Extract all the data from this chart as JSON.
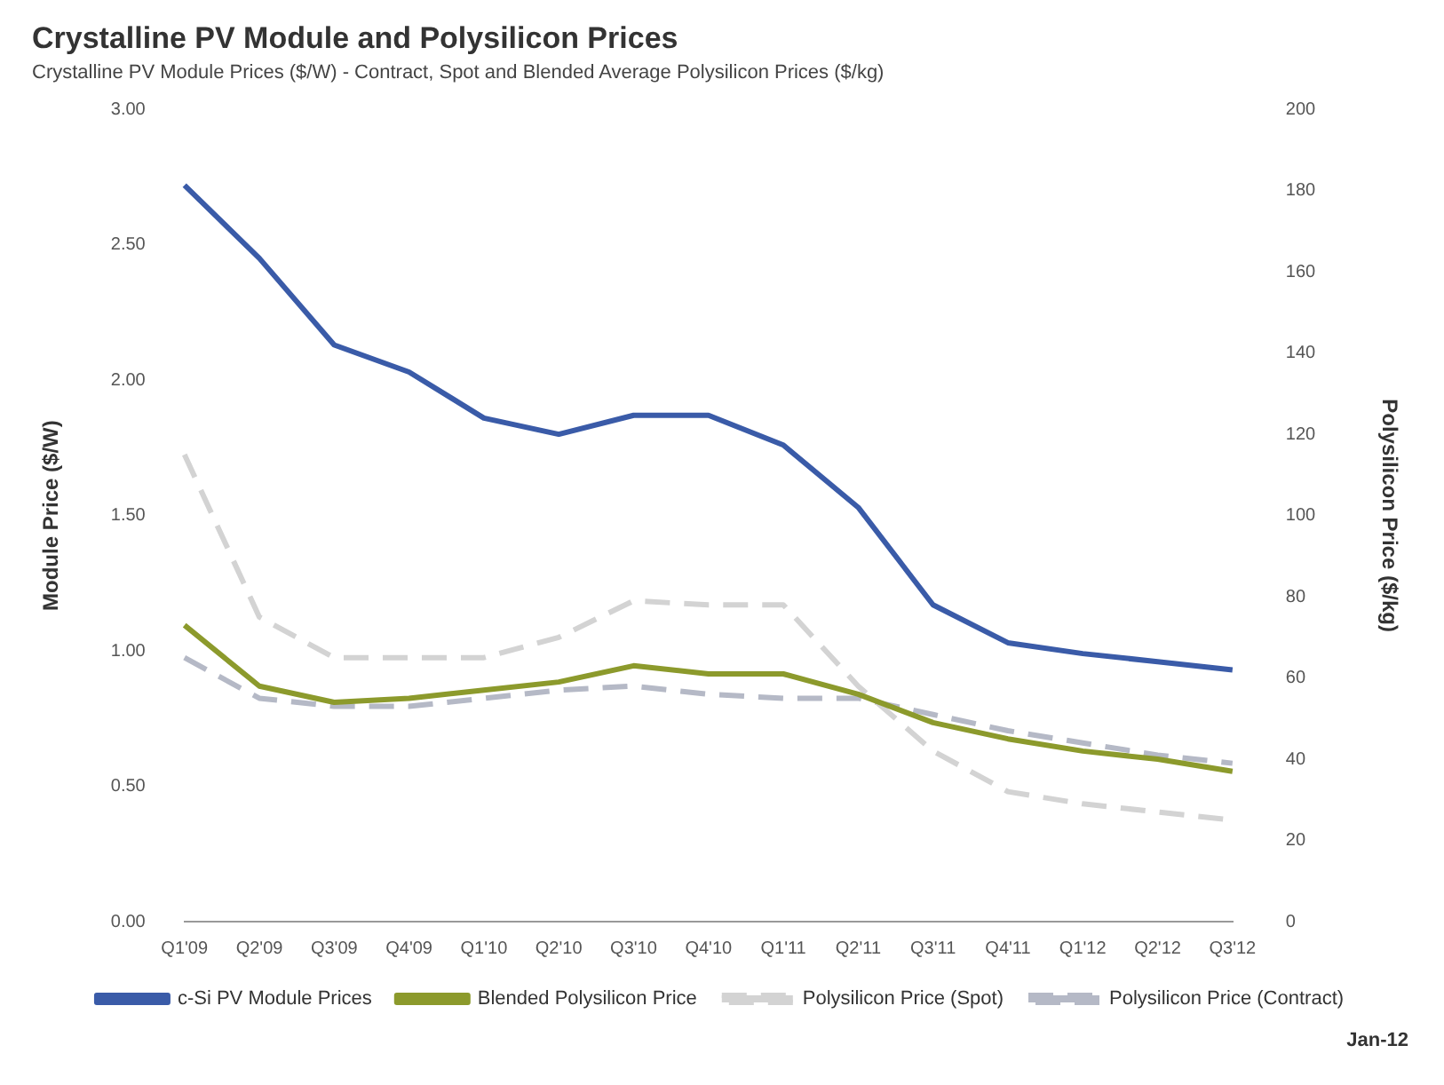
{
  "chart_data": {
    "type": "line",
    "title": "Crystalline PV Module and Polysilicon Prices",
    "subtitle": "Crystalline PV Module Prices ($/W) - Contract, Spot and Blended Average Polysilicon Prices ($/kg)",
    "ylabel": "Module Price ($/W)",
    "y2label": "Polysilicon Price ($/kg)",
    "categories": [
      "Q1'09",
      "Q2'09",
      "Q3'09",
      "Q4'09",
      "Q1'10",
      "Q2'10",
      "Q3'10",
      "Q4'10",
      "Q1'11",
      "Q2'11",
      "Q3'11",
      "Q4'11",
      "Q1'12",
      "Q2'12",
      "Q3'12"
    ],
    "series": [
      {
        "name": "c-Si PV Module Prices",
        "color": "#3a5ba8",
        "line_style": "solid",
        "values": [
          2.72,
          2.45,
          2.13,
          2.03,
          1.86,
          1.8,
          1.87,
          1.87,
          1.76,
          1.53,
          1.17,
          1.03,
          0.99,
          0.96,
          0.93
        ]
      },
      {
        "name": "Blended Polysilicon Price",
        "color": "#8c9a2c",
        "axis": "y2",
        "line_style": "solid",
        "values": [
          73,
          58,
          54,
          55,
          57,
          59,
          63,
          61,
          61,
          56,
          49,
          45,
          42,
          40,
          37
        ]
      },
      {
        "name": "Polysilicon Price (Spot)",
        "color": "#d3d3d3",
        "axis": "y2",
        "line_style": "dashed",
        "values": [
          115,
          75,
          65,
          65,
          65,
          70,
          79,
          78,
          78,
          58,
          42,
          32,
          29,
          27,
          25
        ]
      },
      {
        "name": "Polysilicon Price (Contract)",
        "color": "#b5b9c6",
        "axis": "y2",
        "line_style": "dashed",
        "values": [
          65,
          55,
          53,
          53,
          55,
          57,
          58,
          56,
          55,
          55,
          51,
          47,
          44,
          41,
          39
        ]
      }
    ],
    "ylim": [
      0,
      3
    ],
    "yticks": [
      {
        "value": 0,
        "label": "0.00"
      },
      {
        "value": 0.5,
        "label": "0.50"
      },
      {
        "value": 1,
        "label": "1.00"
      },
      {
        "value": 1.5,
        "label": "1.50"
      },
      {
        "value": 2,
        "label": "2.00"
      },
      {
        "value": 2.5,
        "label": "2.50"
      },
      {
        "value": 3,
        "label": "3.00"
      }
    ],
    "y2lim": [
      0,
      200
    ],
    "y2ticks": [
      0,
      20,
      40,
      60,
      80,
      100,
      120,
      140,
      160,
      180,
      200
    ],
    "grid": false,
    "legend": "bottom",
    "marker": "none",
    "annotations": [
      "Jan-12"
    ]
  }
}
